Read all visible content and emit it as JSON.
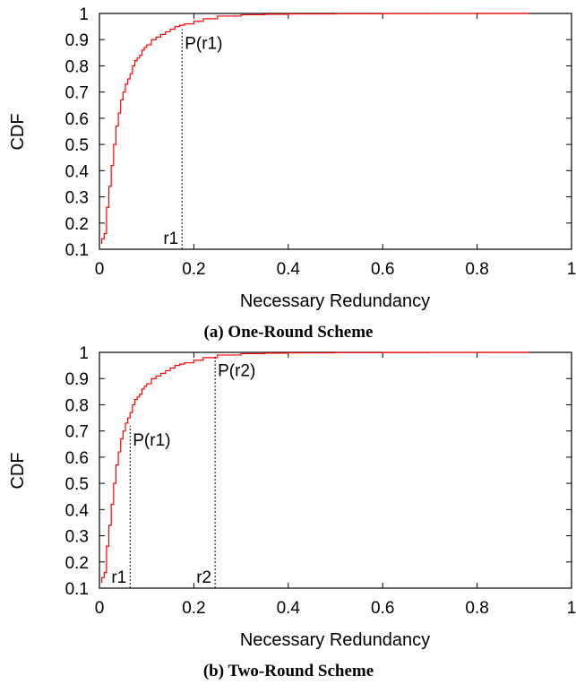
{
  "chart_data": [
    {
      "type": "line",
      "xlabel": "Necessary Redundancy",
      "ylabel": "CDF",
      "xlim": [
        0,
        1
      ],
      "ylim": [
        0.1,
        1
      ],
      "xticks": [
        "0",
        "0.2",
        "0.4",
        "0.6",
        "0.8",
        "1"
      ],
      "yticks": [
        "0.1",
        "0.2",
        "0.3",
        "0.4",
        "0.5",
        "0.6",
        "0.7",
        "0.8",
        "0.9",
        "1"
      ],
      "caption": "(a) One-Round Scheme",
      "series": [
        {
          "color": "#ff0000",
          "step": true,
          "x": [
            0.005,
            0.01,
            0.015,
            0.02,
            0.025,
            0.03,
            0.035,
            0.04,
            0.045,
            0.05,
            0.055,
            0.06,
            0.065,
            0.07,
            0.075,
            0.08,
            0.085,
            0.09,
            0.095,
            0.1,
            0.11,
            0.12,
            0.13,
            0.14,
            0.15,
            0.16,
            0.17,
            0.18,
            0.2,
            0.22,
            0.25,
            0.3,
            0.35,
            0.4,
            0.5,
            0.6,
            0.7,
            0.8,
            0.91
          ],
          "y": [
            0.14,
            0.16,
            0.26,
            0.34,
            0.42,
            0.5,
            0.57,
            0.62,
            0.67,
            0.7,
            0.73,
            0.75,
            0.77,
            0.8,
            0.82,
            0.83,
            0.84,
            0.86,
            0.87,
            0.88,
            0.9,
            0.91,
            0.92,
            0.93,
            0.94,
            0.95,
            0.955,
            0.96,
            0.97,
            0.98,
            0.99,
            0.995,
            0.997,
            0.998,
            0.999,
            0.9995,
            0.9998,
            1.0,
            1.0
          ]
        }
      ],
      "markers": [
        {
          "label": "r1",
          "x": 0.175,
          "point_label": "P(r1)",
          "y": 0.94
        }
      ]
    },
    {
      "type": "line",
      "xlabel": "Necessary Redundancy",
      "ylabel": "CDF",
      "xlim": [
        0,
        1
      ],
      "ylim": [
        0.1,
        1
      ],
      "xticks": [
        "0",
        "0.2",
        "0.4",
        "0.6",
        "0.8",
        "1"
      ],
      "yticks": [
        "0.1",
        "0.2",
        "0.3",
        "0.4",
        "0.5",
        "0.6",
        "0.7",
        "0.8",
        "0.9",
        "1"
      ],
      "caption": "(b) Two-Round Scheme",
      "series": [
        {
          "color": "#ff0000",
          "step": true,
          "x": [
            0.005,
            0.01,
            0.015,
            0.02,
            0.025,
            0.03,
            0.035,
            0.04,
            0.045,
            0.05,
            0.055,
            0.06,
            0.065,
            0.07,
            0.075,
            0.08,
            0.085,
            0.09,
            0.095,
            0.1,
            0.11,
            0.12,
            0.13,
            0.14,
            0.15,
            0.16,
            0.17,
            0.18,
            0.2,
            0.22,
            0.25,
            0.3,
            0.35,
            0.4,
            0.5,
            0.6,
            0.7,
            0.8,
            0.91
          ],
          "y": [
            0.14,
            0.16,
            0.26,
            0.34,
            0.42,
            0.5,
            0.57,
            0.62,
            0.67,
            0.7,
            0.73,
            0.75,
            0.77,
            0.8,
            0.82,
            0.83,
            0.84,
            0.86,
            0.87,
            0.88,
            0.9,
            0.91,
            0.92,
            0.93,
            0.94,
            0.95,
            0.955,
            0.96,
            0.97,
            0.98,
            0.99,
            0.995,
            0.997,
            0.998,
            0.999,
            0.9995,
            0.9998,
            1.0,
            1.0
          ]
        }
      ],
      "markers": [
        {
          "label": "r1",
          "x": 0.065,
          "point_label": "P(r1)",
          "y": 0.72
        },
        {
          "label": "r2",
          "x": 0.245,
          "point_label": "P(r2)",
          "y": 0.985
        }
      ]
    }
  ]
}
